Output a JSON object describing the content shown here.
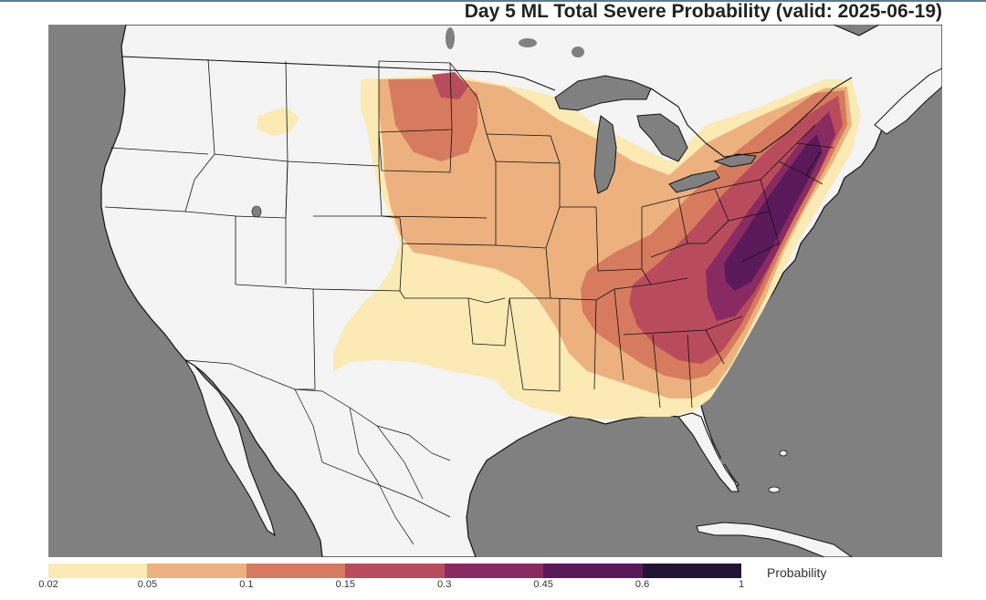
{
  "title": "Day 5 ML Total Severe Probability (valid: 2025-06-19)",
  "colors": {
    "ocean": "#808080",
    "land": "#f4f4f4",
    "border": "#111111"
  },
  "legend": {
    "label": "Probability",
    "ticks": [
      "0.02",
      "0.05",
      "0.1",
      "0.15",
      "0.3",
      "0.45",
      "0.6",
      "1"
    ],
    "bins": [
      {
        "from": "0.02",
        "to": "0.05",
        "color": "#fbeab4"
      },
      {
        "from": "0.05",
        "to": "0.1",
        "color": "#ecb17f"
      },
      {
        "from": "0.1",
        "to": "0.15",
        "color": "#d67b5e"
      },
      {
        "from": "0.15",
        "to": "0.3",
        "color": "#b94c5c"
      },
      {
        "from": "0.3",
        "to": "0.45",
        "color": "#8a2a62"
      },
      {
        "from": "0.45",
        "to": "0.6",
        "color": "#5a1a5a"
      },
      {
        "from": "0.6",
        "to": "1",
        "color": "#231335"
      }
    ]
  },
  "regions": [
    {
      "name": "northeast-us",
      "bin": "0.45-0.6"
    },
    {
      "name": "mid-atlantic-us",
      "bin": "0.3-0.45"
    },
    {
      "name": "ohio-valley-us",
      "bin": "0.15-0.3"
    },
    {
      "name": "southeast-us",
      "bin": "0.1-0.15"
    },
    {
      "name": "northern-plains-us",
      "bin": "0.05-0.1"
    },
    {
      "name": "central-plains-us",
      "bin": "0.02-0.05"
    }
  ]
}
